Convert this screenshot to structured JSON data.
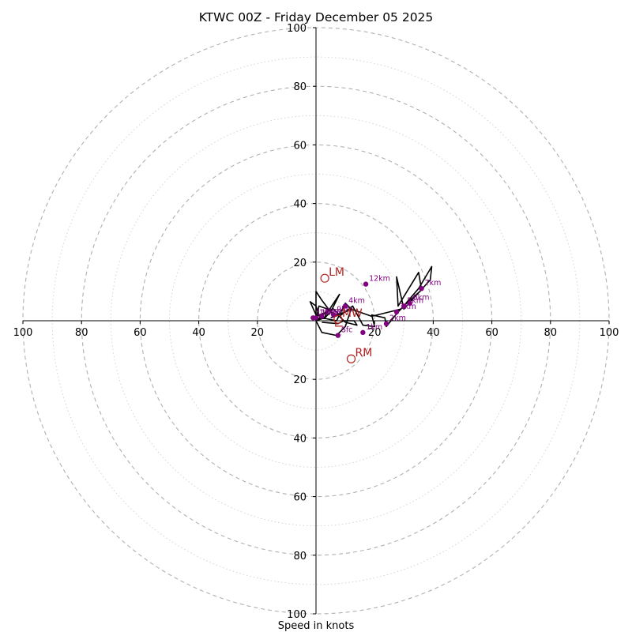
{
  "chart_data": {
    "type": "hodograph",
    "title": "KTWC 00Z - Friday December 05 2025",
    "xlabel": "Speed in knots",
    "max_speed": 100,
    "ring_major_step": 20,
    "ring_minor_step": 10,
    "axis_ticks": [
      "100",
      "80",
      "60",
      "40",
      "20",
      "20",
      "40",
      "60",
      "80",
      "100"
    ],
    "vertical_ticks": [
      "100",
      "80",
      "60",
      "40",
      "20",
      "20",
      "40",
      "60",
      "80",
      "100"
    ],
    "colors": {
      "trace": "#000000",
      "height_marker": "#800080",
      "storm_motion": "#b22222",
      "grid": "#b0b0b0",
      "mean_wind": "#ff8c00"
    },
    "trace": [
      [
        2,
        -0.5
      ],
      [
        7.5,
        -1
      ],
      [
        9.5,
        0
      ],
      [
        13,
        0
      ],
      [
        14,
        -1.5
      ],
      [
        10,
        -0.5
      ],
      [
        8,
        1.5
      ],
      [
        12.5,
        5
      ],
      [
        16,
        -1.5
      ],
      [
        20,
        -2
      ],
      [
        19,
        2
      ],
      [
        23.5,
        1
      ],
      [
        24,
        -2
      ],
      [
        28,
        3
      ],
      [
        31,
        6
      ],
      [
        36,
        10.5
      ],
      [
        35,
        16.5
      ],
      [
        28,
        5
      ],
      [
        27.5,
        15
      ],
      [
        30,
        4
      ],
      [
        39,
        14
      ],
      [
        39.5,
        18.5
      ],
      [
        35,
        11
      ],
      [
        29,
        4
      ],
      [
        25,
        3
      ],
      [
        19,
        1.5
      ],
      [
        12,
        4
      ],
      [
        10,
        3
      ],
      [
        7,
        2
      ],
      [
        5,
        3
      ],
      [
        3,
        1
      ],
      [
        0,
        2
      ],
      [
        0,
        10
      ],
      [
        2,
        7
      ],
      [
        5,
        3
      ],
      [
        8,
        9
      ],
      [
        4,
        3
      ],
      [
        1,
        2
      ],
      [
        0,
        5
      ],
      [
        -2,
        6.5
      ],
      [
        0,
        2
      ],
      [
        0,
        0
      ],
      [
        4,
        3.5
      ],
      [
        6,
        4
      ],
      [
        8,
        2
      ],
      [
        7,
        0
      ],
      [
        2,
        1
      ],
      [
        0,
        0
      ],
      [
        1,
        5
      ],
      [
        4,
        4
      ],
      [
        3,
        1
      ],
      [
        0,
        0
      ],
      [
        2,
        -4
      ],
      [
        7,
        -5
      ],
      [
        10,
        -2
      ],
      [
        12,
        4
      ],
      [
        10,
        6
      ],
      [
        8,
        2
      ],
      [
        5,
        1
      ]
    ],
    "height_markers": [
      {
        "label": "Sfc",
        "u": 7.5,
        "v": -5
      },
      {
        "label": "1km",
        "u": 16,
        "v": -4
      },
      {
        "label": "2km",
        "u": 24,
        "v": -1
      },
      {
        "label": "3km",
        "u": 27.5,
        "v": 3
      },
      {
        "label": "4km",
        "u": 10,
        "v": 5
      },
      {
        "label": "5km",
        "u": 30,
        "v": 5
      },
      {
        "label": "6km",
        "u": 32,
        "v": 6
      },
      {
        "label": "7km",
        "u": 36,
        "v": 11
      },
      {
        "label": "8km",
        "u": 2,
        "v": 1.5
      },
      {
        "label": "9km",
        "u": 6,
        "v": 2
      },
      {
        "label": "10km",
        "u": 0,
        "v": 1
      },
      {
        "label": "11km",
        "u": -1,
        "v": 1
      },
      {
        "label": "12km",
        "u": 17,
        "v": 12.5
      }
    ],
    "storm_motions": [
      {
        "label": "LM",
        "u": 3,
        "v": 14.5
      },
      {
        "label": "RM",
        "u": 12,
        "v": -13
      },
      {
        "label": "MW",
        "u": 7.5,
        "v": 0.5
      }
    ],
    "critical_angle_marker": {
      "u": 7.5,
      "v": -0.5
    }
  }
}
